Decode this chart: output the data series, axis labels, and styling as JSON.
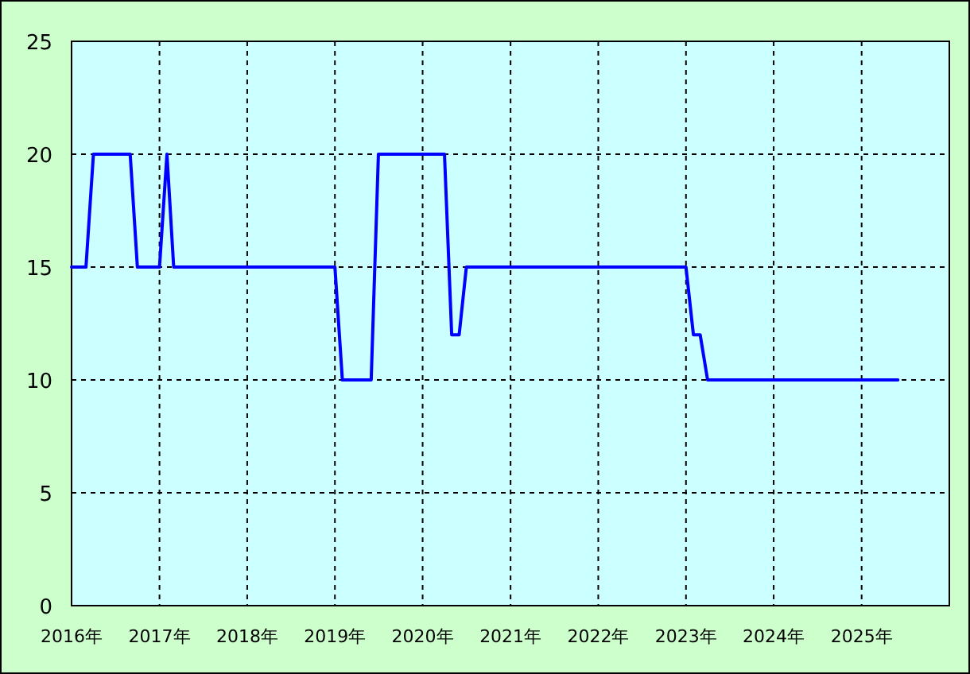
{
  "chart_data": {
    "type": "line",
    "x": [
      "2016-01",
      "2016-03",
      "2016-04",
      "2016-09",
      "2016-10",
      "2017-01",
      "2017-02",
      "2017-03",
      "2019-01",
      "2019-02",
      "2019-06",
      "2019-07",
      "2020-04",
      "2020-05",
      "2020-06",
      "2020-07",
      "2023-01",
      "2023-02",
      "2023-03",
      "2023-04",
      "2025-06"
    ],
    "series": [
      {
        "color": "#0000ff",
        "values": [
          15,
          15,
          20,
          20,
          15,
          15,
          20,
          15,
          15,
          10,
          10,
          20,
          20,
          12,
          12,
          15,
          15,
          12,
          12,
          10,
          10
        ]
      }
    ],
    "xlim": [
      "2016-01",
      "2026-01"
    ],
    "xticks": [
      {
        "value": "2016-01",
        "label": "2016年"
      },
      {
        "value": "2017-01",
        "label": "2017年"
      },
      {
        "value": "2018-01",
        "label": "2018年"
      },
      {
        "value": "2019-01",
        "label": "2019年"
      },
      {
        "value": "2020-01",
        "label": "2020年"
      },
      {
        "value": "2021-01",
        "label": "2021年"
      },
      {
        "value": "2022-01",
        "label": "2022年"
      },
      {
        "value": "2023-01",
        "label": "2023年"
      },
      {
        "value": "2024-01",
        "label": "2024年"
      },
      {
        "value": "2025-01",
        "label": "2025年"
      },
      {
        "value": "2026-01",
        "label": null
      }
    ],
    "ylim": [
      0,
      25
    ],
    "yticks": [
      0,
      5,
      10,
      15,
      20,
      25
    ],
    "grid": true,
    "line_style": "solid",
    "marker": "none"
  }
}
